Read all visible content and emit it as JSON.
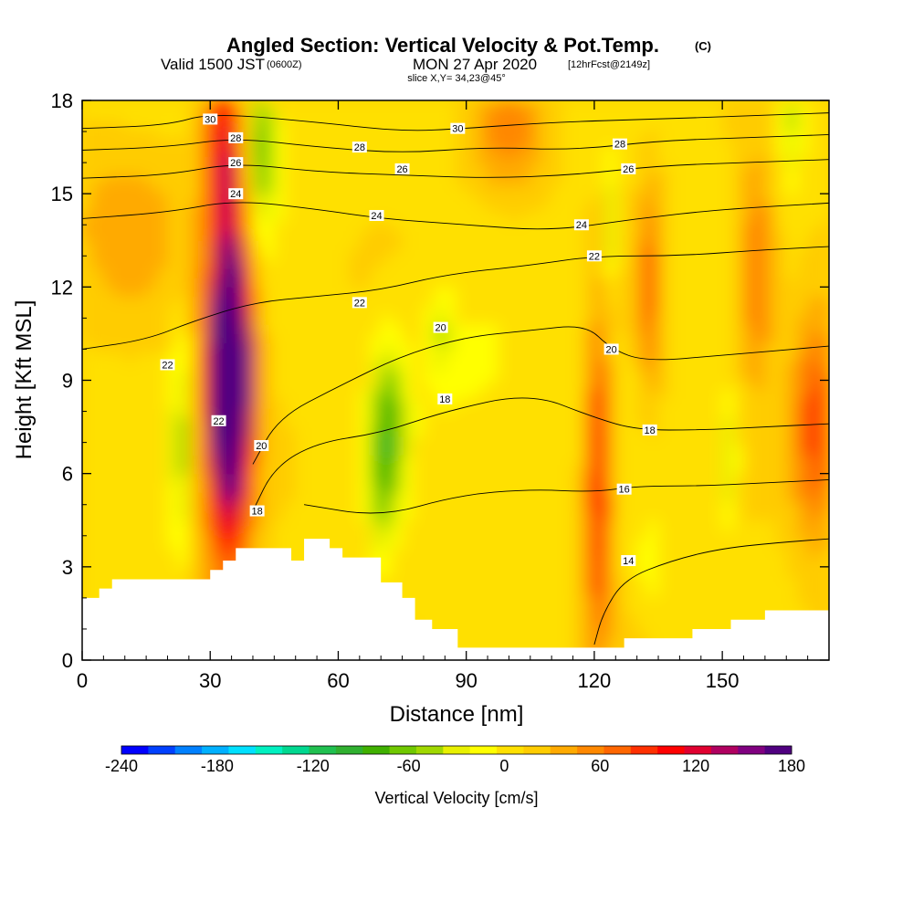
{
  "header": {
    "title": "Angled Section: Vertical Velocity & Pot.Temp.",
    "title_unit": "(C)",
    "valid_prefix": "Valid 1500 JST",
    "valid_utc": "(0600Z)",
    "valid_date": "MON 27 Apr 2020",
    "forecast": "[12hrFcst@2149z]",
    "slice": "slice X,Y= 34,23@45°"
  },
  "chart_data": {
    "type": "heatmap",
    "xlabel": "Distance [nm]",
    "ylabel": "Height [Kft MSL]",
    "xlim": [
      0,
      175
    ],
    "ylim": [
      0,
      18
    ],
    "x_ticks": [
      "0",
      "30",
      "60",
      "90",
      "120",
      "150"
    ],
    "x_tick_values": [
      0,
      30,
      60,
      90,
      120,
      150
    ],
    "y_ticks": [
      "0",
      "3",
      "6",
      "9",
      "12",
      "15",
      "18"
    ],
    "y_tick_values": [
      0,
      3,
      6,
      9,
      12,
      15,
      18
    ],
    "colorbar": {
      "label": "Vertical Velocity [cm/s]",
      "ticks": [
        "-240",
        "-180",
        "-120",
        "-60",
        "0",
        "60",
        "120",
        "180"
      ],
      "tick_values": [
        -240,
        -180,
        -120,
        -60,
        0,
        60,
        120,
        180
      ],
      "min": -240,
      "max": 180,
      "colors": [
        "#0000ff",
        "#0040ff",
        "#0080ff",
        "#00b0ff",
        "#00e0ff",
        "#00f0c0",
        "#00d890",
        "#20c050",
        "#30b030",
        "#40b000",
        "#70c800",
        "#a0d800",
        "#e8f000",
        "#ffff00",
        "#ffe000",
        "#ffcc00",
        "#ffaa00",
        "#ff8800",
        "#ff6600",
        "#ff3000",
        "#ff0000",
        "#e00030",
        "#b00060",
        "#800080",
        "#500080"
      ]
    },
    "terrain_profile": [
      [
        0,
        2.0
      ],
      [
        4,
        2.0
      ],
      [
        4,
        2.3
      ],
      [
        7,
        2.3
      ],
      [
        7,
        2.6
      ],
      [
        10,
        2.6
      ],
      [
        10,
        2.6
      ],
      [
        30,
        2.6
      ],
      [
        30,
        2.9
      ],
      [
        33,
        2.9
      ],
      [
        33,
        3.2
      ],
      [
        36,
        3.2
      ],
      [
        36,
        3.6
      ],
      [
        49,
        3.6
      ],
      [
        49,
        3.2
      ],
      [
        52,
        3.2
      ],
      [
        52,
        3.9
      ],
      [
        58,
        3.9
      ],
      [
        58,
        3.6
      ],
      [
        61,
        3.6
      ],
      [
        61,
        3.3
      ],
      [
        70,
        3.3
      ],
      [
        70,
        2.5
      ],
      [
        75,
        2.5
      ],
      [
        75,
        2.0
      ],
      [
        78,
        2.0
      ],
      [
        78,
        1.3
      ],
      [
        82,
        1.3
      ],
      [
        82,
        1.0
      ],
      [
        88,
        1.0
      ],
      [
        88,
        0.4
      ],
      [
        120,
        0.4
      ],
      [
        120,
        0.4
      ],
      [
        127,
        0.4
      ],
      [
        127,
        0.7
      ],
      [
        143,
        0.7
      ],
      [
        143,
        1.0
      ],
      [
        152,
        1.0
      ],
      [
        152,
        1.3
      ],
      [
        160,
        1.3
      ],
      [
        160,
        1.6
      ],
      [
        175,
        1.6
      ]
    ],
    "wind_features": [
      {
        "x": 35,
        "y": 9.5,
        "sx": 3,
        "sy": 2.5,
        "w": 180
      },
      {
        "x": 34,
        "y": 8.5,
        "sx": 4,
        "sy": 4.5,
        "w": 130
      },
      {
        "x": 33,
        "y": 16.5,
        "sx": 3,
        "sy": 2,
        "w": 90
      },
      {
        "x": 42,
        "y": 16.5,
        "sx": 2.5,
        "sy": 2,
        "w": -80
      },
      {
        "x": 23,
        "y": 7,
        "sx": 1.5,
        "sy": 2.5,
        "w": -60
      },
      {
        "x": 72,
        "y": 7.5,
        "sx": 3,
        "sy": 2,
        "w": -70
      },
      {
        "x": 70,
        "y": 5.5,
        "sx": 2,
        "sy": 2,
        "w": -40
      },
      {
        "x": 84,
        "y": 10.5,
        "sx": 2,
        "sy": 1,
        "w": -40
      },
      {
        "x": 121,
        "y": 5.5,
        "sx": 2,
        "sy": 3.5,
        "w": 110
      },
      {
        "x": 124,
        "y": 14,
        "sx": 1,
        "sy": 1.5,
        "w": -50
      },
      {
        "x": 133,
        "y": 12,
        "sx": 2,
        "sy": 2.5,
        "w": 60
      },
      {
        "x": 133,
        "y": 3.2,
        "sx": 1.5,
        "sy": 1,
        "w": -30
      },
      {
        "x": 152,
        "y": 6.5,
        "sx": 1.2,
        "sy": 1.5,
        "w": -60
      },
      {
        "x": 158,
        "y": 12.5,
        "sx": 3,
        "sy": 2.5,
        "w": 60
      },
      {
        "x": 172,
        "y": 7.5,
        "sx": 4,
        "sy": 2.5,
        "w": 80
      },
      {
        "x": 166,
        "y": 17.5,
        "sx": 2,
        "sy": 1.5,
        "w": -50
      },
      {
        "x": 100,
        "y": 17,
        "sx": 6,
        "sy": 1.5,
        "w": 45
      },
      {
        "x": 92,
        "y": 9,
        "sx": 10,
        "sy": 2,
        "w": -15
      },
      {
        "x": 10,
        "y": 14,
        "sx": 10,
        "sy": 2,
        "w": 30
      }
    ],
    "contours": [
      {
        "label": "14",
        "points": [
          [
            120,
            0.5
          ],
          [
            122,
            1.5
          ],
          [
            127,
            2.6
          ],
          [
            138,
            3.2
          ],
          [
            150,
            3.6
          ],
          [
            165,
            3.8
          ],
          [
            175,
            3.9
          ]
        ],
        "label_at": [
          128,
          3.2
        ]
      },
      {
        "label": "16",
        "points": [
          [
            52,
            5.0
          ],
          [
            70,
            4.6
          ],
          [
            88,
            5.3
          ],
          [
            105,
            5.5
          ],
          [
            120,
            5.4
          ],
          [
            130,
            5.6
          ],
          [
            145,
            5.6
          ],
          [
            160,
            5.7
          ],
          [
            175,
            5.8
          ]
        ],
        "label_at": [
          127,
          5.5
        ]
      },
      {
        "label": "18",
        "points": [
          [
            40,
            4.8
          ],
          [
            45,
            6.2
          ],
          [
            55,
            7.0
          ],
          [
            70,
            7.3
          ],
          [
            85,
            8.0
          ],
          [
            105,
            8.6
          ],
          [
            120,
            7.8
          ],
          [
            130,
            7.4
          ],
          [
            145,
            7.4
          ],
          [
            160,
            7.5
          ],
          [
            175,
            7.6
          ]
        ],
        "label_at": [
          133,
          7.4
        ]
      },
      {
        "label": "20",
        "points": [
          [
            40,
            6.3
          ],
          [
            46,
            7.8
          ],
          [
            60,
            8.8
          ],
          [
            75,
            9.8
          ],
          [
            90,
            10.4
          ],
          [
            105,
            10.6
          ],
          [
            118,
            10.8
          ],
          [
            124,
            10.0
          ],
          [
            132,
            9.6
          ],
          [
            150,
            9.8
          ],
          [
            175,
            10.1
          ]
        ],
        "label_at": [
          124,
          10.0
        ]
      },
      {
        "label": "22",
        "points": [
          [
            0,
            10.0
          ],
          [
            15,
            10.3
          ],
          [
            26,
            10.9
          ],
          [
            40,
            11.5
          ],
          [
            55,
            11.7
          ],
          [
            70,
            11.9
          ],
          [
            85,
            12.4
          ],
          [
            105,
            12.7
          ],
          [
            120,
            13.0
          ],
          [
            140,
            13.0
          ],
          [
            160,
            13.2
          ],
          [
            175,
            13.3
          ]
        ],
        "label_at": [
          120,
          13.0
        ]
      },
      {
        "label": "24",
        "points": [
          [
            0,
            14.2
          ],
          [
            20,
            14.4
          ],
          [
            36,
            14.8
          ],
          [
            55,
            14.5
          ],
          [
            70,
            14.2
          ],
          [
            90,
            14.0
          ],
          [
            110,
            13.8
          ],
          [
            130,
            14.2
          ],
          [
            150,
            14.5
          ],
          [
            175,
            14.7
          ]
        ],
        "label_at": [
          117,
          14.0
        ]
      },
      {
        "label": "26",
        "points": [
          [
            0,
            15.5
          ],
          [
            20,
            15.6
          ],
          [
            36,
            16.0
          ],
          [
            55,
            15.7
          ],
          [
            75,
            15.6
          ],
          [
            95,
            15.5
          ],
          [
            115,
            15.6
          ],
          [
            135,
            15.9
          ],
          [
            155,
            16.0
          ],
          [
            175,
            16.1
          ]
        ],
        "label_at": [
          128,
          15.8
        ]
      },
      {
        "label": "28",
        "points": [
          [
            0,
            16.4
          ],
          [
            20,
            16.5
          ],
          [
            36,
            16.8
          ],
          [
            55,
            16.5
          ],
          [
            75,
            16.3
          ],
          [
            95,
            16.5
          ],
          [
            115,
            16.4
          ],
          [
            135,
            16.7
          ],
          [
            155,
            16.8
          ],
          [
            175,
            16.9
          ]
        ],
        "label_at": [
          126,
          16.6
        ]
      },
      {
        "label": "30",
        "points": [
          [
            0,
            17.1
          ],
          [
            20,
            17.2
          ],
          [
            30,
            17.6
          ],
          [
            55,
            17.3
          ],
          [
            75,
            17.0
          ],
          [
            90,
            17.1
          ],
          [
            110,
            17.3
          ],
          [
            135,
            17.4
          ],
          [
            155,
            17.5
          ],
          [
            175,
            17.6
          ]
        ],
        "label_at": [
          88,
          17.1
        ]
      }
    ],
    "extra_labels": [
      {
        "label": "22",
        "at": [
          20,
          9.5
        ]
      },
      {
        "label": "22",
        "at": [
          32,
          7.7
        ]
      },
      {
        "label": "20",
        "at": [
          42,
          6.9
        ]
      },
      {
        "label": "18",
        "at": [
          41,
          4.8
        ]
      },
      {
        "label": "20",
        "at": [
          84,
          10.7
        ]
      },
      {
        "label": "18",
        "at": [
          85,
          8.4
        ]
      },
      {
        "label": "22",
        "at": [
          65,
          11.5
        ]
      },
      {
        "label": "24",
        "at": [
          69,
          14.3
        ]
      },
      {
        "label": "26",
        "at": [
          75,
          15.8
        ]
      },
      {
        "label": "28",
        "at": [
          65,
          16.5
        ]
      },
      {
        "label": "24",
        "at": [
          36,
          15.0
        ]
      },
      {
        "label": "26",
        "at": [
          36,
          16.0
        ]
      },
      {
        "label": "28",
        "at": [
          36,
          16.8
        ]
      },
      {
        "label": "30",
        "at": [
          30,
          17.4
        ]
      }
    ]
  }
}
